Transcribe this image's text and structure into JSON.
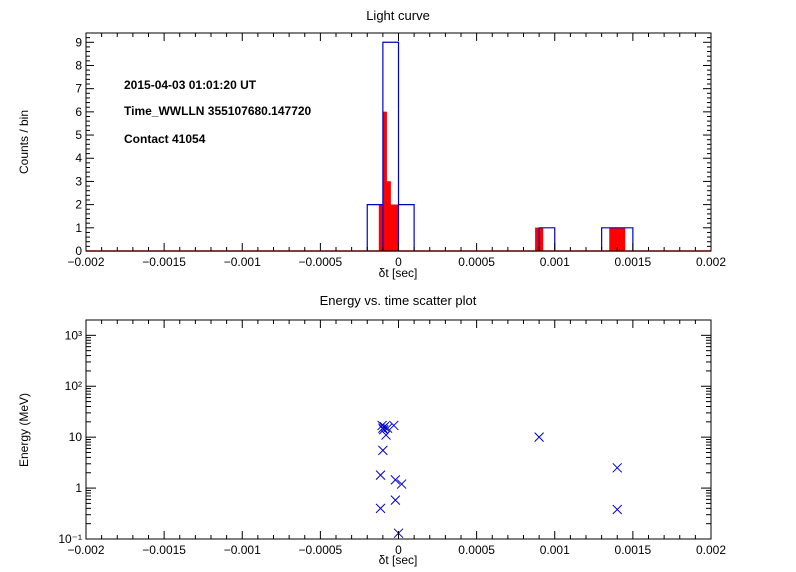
{
  "chart_data": [
    {
      "type": "bar",
      "title": "Light curve",
      "xlabel": "δt [sec]",
      "ylabel": "Counts / bin",
      "xlim": [
        -0.002,
        0.002
      ],
      "ylim": [
        0,
        9.4
      ],
      "x_tick_labels": [
        "−0.002",
        "−0.0015",
        "−0.001",
        "−0.0005",
        "0",
        "0.0005",
        "0.001",
        "0.0015",
        "0.002"
      ],
      "x_ticks": [
        -0.002,
        -0.0015,
        -0.001,
        -0.0005,
        0,
        0.0005,
        0.001,
        0.0015,
        0.002
      ],
      "y_ticks": [
        0,
        1,
        2,
        3,
        4,
        5,
        6,
        7,
        8,
        9
      ],
      "y_tick_labels": [
        "0",
        "1",
        "2",
        "3",
        "4",
        "5",
        "6",
        "7",
        "8",
        "9"
      ],
      "annotations": [
        "2015-04-03 01:01:20 UT",
        "Time_WWLLN 355107680.147720",
        "Contact 41054"
      ],
      "series": [
        {
          "style": "outline",
          "color": "#0000cc",
          "bins": [
            {
              "x0": -0.0002,
              "x1": -0.0001,
              "value": 2
            },
            {
              "x0": -0.0001,
              "x1": 0.0,
              "value": 9
            },
            {
              "x0": 0.0,
              "x1": 0.0001,
              "value": 2
            },
            {
              "x0": 0.0009,
              "x1": 0.001,
              "value": 1
            },
            {
              "x0": 0.0013,
              "x1": 0.0015,
              "value": 1
            }
          ]
        },
        {
          "style": "filled",
          "color": "#ff0000",
          "bins": [
            {
              "x0": -0.000125,
              "x1": -0.0001,
              "value": 2
            },
            {
              "x0": -0.0001,
              "x1": -7.5e-05,
              "value": 6
            },
            {
              "x0": -7.5e-05,
              "x1": -5e-05,
              "value": 3
            },
            {
              "x0": -5e-05,
              "x1": -2.5e-05,
              "value": 2
            },
            {
              "x0": -2.5e-05,
              "x1": 0.0,
              "value": 2
            },
            {
              "x0": 0.000875,
              "x1": 0.0009,
              "value": 1
            },
            {
              "x0": 0.0009,
              "x1": 0.000925,
              "value": 1
            },
            {
              "x0": 0.00135,
              "x1": 0.001375,
              "value": 1
            },
            {
              "x0": 0.001375,
              "x1": 0.0014,
              "value": 1
            },
            {
              "x0": 0.0014,
              "x1": 0.001425,
              "value": 1
            },
            {
              "x0": 0.001425,
              "x1": 0.00145,
              "value": 1
            }
          ]
        }
      ]
    },
    {
      "type": "scatter",
      "title": "Energy vs. time scatter plot",
      "xlabel": "δt [sec]",
      "ylabel": "Energy (MeV)",
      "xlim": [
        -0.002,
        0.002
      ],
      "ylim": [
        0.1,
        2000
      ],
      "y_scale": "log",
      "x_tick_labels": [
        "−0.002",
        "−0.0015",
        "−0.001",
        "−0.0005",
        "0",
        "0.0005",
        "0.001",
        "0.0015",
        "0.002"
      ],
      "x_ticks": [
        -0.002,
        -0.0015,
        -0.001,
        -0.0005,
        0,
        0.0005,
        0.001,
        0.0015,
        0.002
      ],
      "y_ticks": [
        0.1,
        1,
        10,
        100,
        1000
      ],
      "y_tick_labels": [
        "10⁻¹",
        "1",
        "10",
        "10²",
        "10³"
      ],
      "marker": "x",
      "color": "#0000cc",
      "points": [
        {
          "x": -0.000105,
          "y": 17
        },
        {
          "x": -0.0001,
          "y": 15
        },
        {
          "x": -9.5e-05,
          "y": 14
        },
        {
          "x": -9e-05,
          "y": 16
        },
        {
          "x": -8e-05,
          "y": 11
        },
        {
          "x": -7e-05,
          "y": 15
        },
        {
          "x": -3e-05,
          "y": 17
        },
        {
          "x": -0.0001,
          "y": 5.5
        },
        {
          "x": -0.000115,
          "y": 1.8
        },
        {
          "x": -0.000115,
          "y": 0.4
        },
        {
          "x": -2e-05,
          "y": 1.45
        },
        {
          "x": 2e-05,
          "y": 1.2
        },
        {
          "x": -2e-05,
          "y": 0.58
        },
        {
          "x": 0.0,
          "y": 0.13
        },
        {
          "x": 0.0009,
          "y": 10
        },
        {
          "x": 0.0014,
          "y": 2.5
        },
        {
          "x": 0.0014,
          "y": 0.38
        }
      ]
    }
  ]
}
